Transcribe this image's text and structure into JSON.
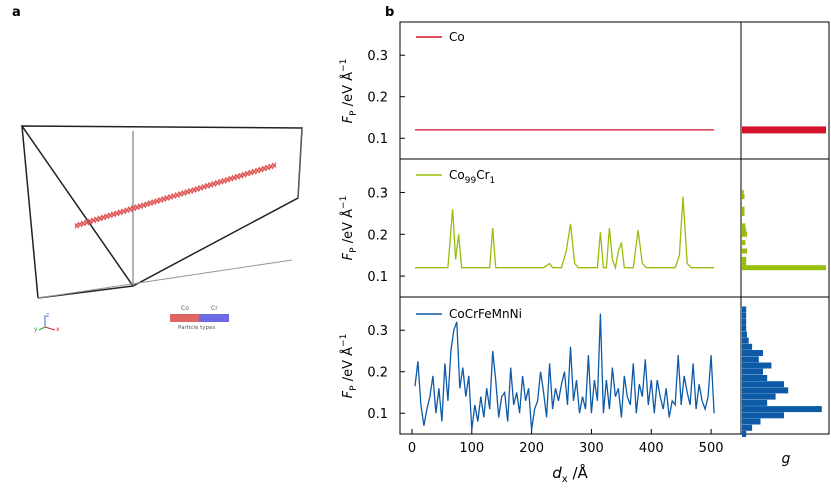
{
  "panel_labels": {
    "a": "a",
    "b": "b"
  },
  "simulation_view": {
    "legend_title": "Particle types",
    "legend_types": [
      {
        "label": "Co",
        "color": "#e06666"
      },
      {
        "label": "Cr",
        "color": "#6b6be6"
      }
    ],
    "axis_tripod": {
      "x": "x",
      "y": "y",
      "z": "z"
    },
    "wire_color": "#e05555"
  },
  "chart_data": [
    {
      "type": "line",
      "series": [
        {
          "name": "Co",
          "x": [
            5,
            505
          ],
          "y": [
            0.12,
            0.12
          ]
        }
      ],
      "ylabel": "F_P /eV Å^-1",
      "ylim": [
        0.05,
        0.38
      ],
      "yticks": [
        "0.1",
        "0.2",
        "0.3"
      ],
      "xlim": [
        -20,
        550
      ],
      "color": "#d4122b",
      "grid": false,
      "legend_position": "top-left"
    },
    {
      "type": "line",
      "series": [
        {
          "name": "Co99Cr1",
          "x": [
            5,
            60,
            68,
            73,
            78,
            83,
            130,
            135,
            140,
            145,
            220,
            230,
            235,
            250,
            258,
            265,
            272,
            278,
            310,
            315,
            320,
            325,
            330,
            335,
            340,
            345,
            350,
            355,
            370,
            378,
            385,
            392,
            440,
            447,
            453,
            460,
            467,
            505
          ],
          "y": [
            0.12,
            0.12,
            0.26,
            0.14,
            0.2,
            0.12,
            0.12,
            0.215,
            0.12,
            0.12,
            0.12,
            0.13,
            0.12,
            0.12,
            0.16,
            0.225,
            0.13,
            0.12,
            0.12,
            0.205,
            0.12,
            0.12,
            0.215,
            0.14,
            0.12,
            0.16,
            0.18,
            0.12,
            0.12,
            0.21,
            0.13,
            0.12,
            0.12,
            0.15,
            0.29,
            0.13,
            0.12,
            0.12
          ]
        }
      ],
      "ylabel": "F_P /eV Å^-1",
      "ylim": [
        0.05,
        0.38
      ],
      "yticks": [
        "0.1",
        "0.2",
        "0.3"
      ],
      "xlim": [
        -20,
        550
      ],
      "color": "#97bd0d",
      "grid": false,
      "legend_position": "top-left"
    },
    {
      "type": "line",
      "series": [
        {
          "name": "CoCrFeMnNi",
          "x": [
            5,
            10,
            15,
            20,
            25,
            30,
            35,
            40,
            45,
            50,
            55,
            60,
            65,
            70,
            75,
            80,
            85,
            90,
            95,
            100,
            105,
            110,
            115,
            120,
            125,
            130,
            135,
            140,
            145,
            150,
            155,
            160,
            165,
            170,
            175,
            180,
            185,
            190,
            195,
            200,
            205,
            210,
            215,
            220,
            225,
            230,
            235,
            240,
            245,
            250,
            255,
            260,
            265,
            270,
            275,
            280,
            285,
            290,
            295,
            300,
            305,
            310,
            315,
            320,
            325,
            330,
            335,
            340,
            345,
            350,
            355,
            360,
            365,
            370,
            375,
            380,
            385,
            390,
            395,
            400,
            405,
            410,
            415,
            420,
            425,
            430,
            435,
            440,
            445,
            450,
            455,
            460,
            465,
            470,
            475,
            480,
            485,
            490,
            495,
            500,
            505
          ],
          "y": [
            0.165,
            0.225,
            0.12,
            0.07,
            0.11,
            0.14,
            0.19,
            0.1,
            0.16,
            0.08,
            0.22,
            0.13,
            0.25,
            0.3,
            0.32,
            0.16,
            0.21,
            0.14,
            0.19,
            0.06,
            0.12,
            0.08,
            0.14,
            0.09,
            0.16,
            0.11,
            0.25,
            0.18,
            0.09,
            0.14,
            0.15,
            0.08,
            0.21,
            0.12,
            0.15,
            0.1,
            0.19,
            0.13,
            0.16,
            0.06,
            0.11,
            0.13,
            0.2,
            0.15,
            0.09,
            0.22,
            0.11,
            0.16,
            0.13,
            0.17,
            0.2,
            0.12,
            0.26,
            0.13,
            0.18,
            0.1,
            0.14,
            0.11,
            0.24,
            0.1,
            0.18,
            0.13,
            0.34,
            0.1,
            0.18,
            0.11,
            0.21,
            0.14,
            0.16,
            0.09,
            0.19,
            0.14,
            0.12,
            0.22,
            0.1,
            0.17,
            0.14,
            0.23,
            0.12,
            0.18,
            0.1,
            0.18,
            0.14,
            0.11,
            0.16,
            0.09,
            0.13,
            0.12,
            0.24,
            0.12,
            0.19,
            0.15,
            0.12,
            0.22,
            0.11,
            0.17,
            0.13,
            0.11,
            0.14,
            0.24,
            0.1
          ]
        }
      ],
      "ylabel": "F_P /eV Å^-1",
      "xlabel": "d_x /Å",
      "ylim": [
        0.05,
        0.38
      ],
      "yticks": [
        "0.1",
        "0.2",
        "0.3"
      ],
      "xlim": [
        -20,
        550
      ],
      "xticks": [
        "0",
        "100",
        "200",
        "300",
        "400",
        "500"
      ],
      "color": "#0d5aa7",
      "grid": false,
      "legend_position": "top-left"
    },
    {
      "type": "bar",
      "orientation": "horizontal",
      "name": "Co histogram",
      "bins": [
        0.12
      ],
      "values": [
        1.0
      ],
      "color": "#d4122b"
    },
    {
      "type": "bar",
      "orientation": "horizontal",
      "name": "Co99Cr1 histogram",
      "bins": [
        0.12,
        0.13,
        0.14,
        0.16,
        0.18,
        0.2,
        0.21,
        0.22,
        0.25,
        0.26,
        0.29,
        0.3
      ],
      "values": [
        1.0,
        0.05,
        0.05,
        0.06,
        0.04,
        0.06,
        0.05,
        0.04,
        0.03,
        0.03,
        0.03,
        0.02
      ],
      "color": "#97bd0d"
    },
    {
      "type": "bar",
      "orientation": "horizontal",
      "name": "CoCrFeMnNi histogram",
      "xlabel": "g",
      "bins": [
        0.05,
        0.065,
        0.08,
        0.095,
        0.11,
        0.125,
        0.14,
        0.155,
        0.17,
        0.185,
        0.2,
        0.215,
        0.23,
        0.245,
        0.26,
        0.275,
        0.29,
        0.305,
        0.32,
        0.335,
        0.35
      ],
      "values": [
        0.05,
        0.12,
        0.22,
        0.5,
        0.95,
        0.3,
        0.4,
        0.55,
        0.5,
        0.3,
        0.25,
        0.35,
        0.2,
        0.25,
        0.12,
        0.08,
        0.06,
        0.05,
        0.05,
        0.05,
        0.05
      ],
      "color": "#0d5aa7"
    }
  ]
}
